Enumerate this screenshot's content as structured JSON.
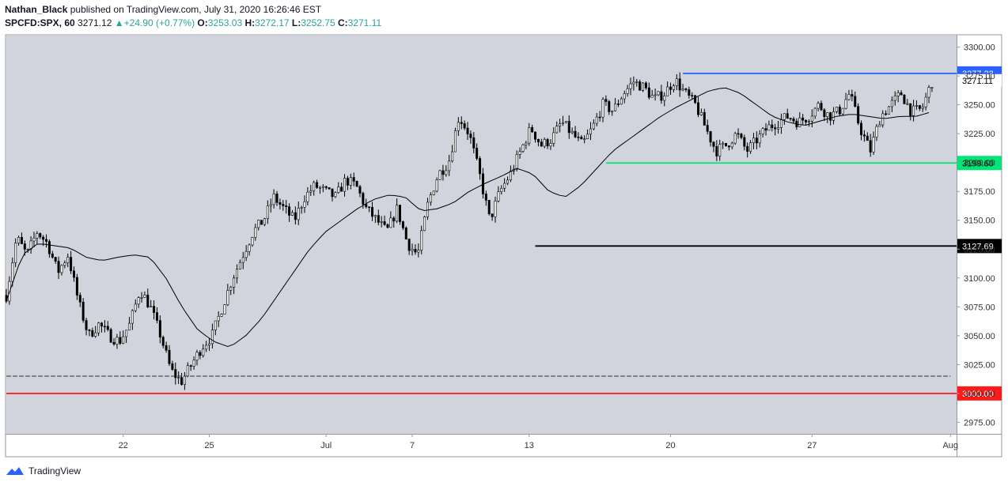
{
  "header": {
    "author": "Nathan_Black",
    "published": "published on TradingView.com, July 31, 2020 16:26:46 EST",
    "symbol": "SPCFD:SPX, 60",
    "last": "3271.12",
    "change": "+24.90 (+0.77%)",
    "o_label": "O:",
    "o_value": "3253.03",
    "h_label": "H:",
    "h_value": "3272.17",
    "l_label": "L:",
    "l_value": "3252.75",
    "c_label": "C:",
    "c_value": "3271.11"
  },
  "footer": {
    "brand": "TradingView",
    "logo_icon": "tradingview-cloud-icon"
  },
  "colors": {
    "up": "#26a69a",
    "bg": "#d1d4dc",
    "blue": "#2962ff",
    "green": "#00e676",
    "red": "#ff1a1a",
    "black": "#000000"
  },
  "chart_data": {
    "type": "candlestick",
    "y_axis": {
      "min": 2965,
      "max": 3310,
      "ticks": [
        2975,
        3000,
        3025,
        3050,
        3075,
        3100,
        3125,
        3150,
        3175,
        3200,
        3225,
        3250,
        3275,
        3300
      ],
      "tick_labels": [
        "2975.00",
        "3000.00",
        "3025.00",
        "3050.00",
        "3075.00",
        "3100.00",
        "3125.00",
        "3150.00",
        "3175.00",
        "3200.00",
        "3225.00",
        "3250.00",
        "3275.00",
        "3300.00"
      ]
    },
    "x_axis": {
      "range": [
        0,
        309
      ],
      "ticks": [
        {
          "label": "22",
          "bar": 38
        },
        {
          "label": "25",
          "bar": 66
        },
        {
          "label": "Jul",
          "bar": 104
        },
        {
          "label": "7",
          "bar": 132
        },
        {
          "label": "13",
          "bar": 170
        },
        {
          "label": "20",
          "bar": 216
        },
        {
          "label": "27",
          "bar": 262
        },
        {
          "label": "Aug",
          "bar": 307
        }
      ]
    },
    "price_series": [
      3085,
      3135,
      3120,
      3140,
      3130,
      3105,
      3120,
      3080,
      3050,
      3060,
      3050,
      3045,
      3060,
      3090,
      3075,
      3050,
      3020,
      3010,
      3025,
      3040,
      3050,
      3075,
      3100,
      3120,
      3140,
      3150,
      3170,
      3160,
      3150,
      3170,
      3180,
      3175,
      3170,
      3185,
      3180,
      3160,
      3150,
      3140,
      3160,
      3130,
      3120,
      3165,
      3190,
      3200,
      3240,
      3225,
      3190,
      3150,
      3175,
      3190,
      3210,
      3230,
      3215,
      3220,
      3235,
      3225,
      3215,
      3230,
      3250,
      3245,
      3260,
      3270,
      3265,
      3255,
      3260,
      3272,
      3260,
      3250,
      3230,
      3210,
      3215,
      3225,
      3210,
      3220,
      3230,
      3235,
      3240,
      3235,
      3240,
      3250,
      3240,
      3245,
      3260,
      3230,
      3210,
      3240,
      3250,
      3260,
      3244,
      3246,
      3270
    ],
    "ma_series": [
      3080,
      3120,
      3130,
      3128,
      3126,
      3118,
      3115,
      3118,
      3120,
      3118,
      3100,
      3075,
      3055,
      3045,
      3040,
      3050,
      3065,
      3085,
      3105,
      3125,
      3140,
      3150,
      3160,
      3168,
      3172,
      3170,
      3158,
      3160,
      3165,
      3175,
      3182,
      3188,
      3195,
      3190,
      3175,
      3170,
      3180,
      3195,
      3210,
      3220,
      3230,
      3240,
      3248,
      3255,
      3262,
      3265,
      3260,
      3250,
      3240,
      3235,
      3232,
      3236,
      3240,
      3242,
      3240,
      3238,
      3240,
      3240,
      3244
    ],
    "levels": [
      {
        "value": 3277.23,
        "label": "3277.23",
        "color": "#2962ff",
        "bar_start": 220
      },
      {
        "value": 3199.6,
        "label": "3199.60",
        "color": "#00e676",
        "bar_start": 195
      },
      {
        "value": 3127.69,
        "label": "3127.69",
        "color": "#000000",
        "bar_start": 172
      },
      {
        "value": 3000.0,
        "label": "3000.00",
        "color": "#ff1a1a",
        "bar_start": 0
      },
      {
        "value": 3015,
        "label": "",
        "color": "#333333",
        "bar_start": 0,
        "bar_end": 307,
        "dashed": true
      }
    ],
    "last_price": {
      "value": 3271.11,
      "label": "3271.11"
    }
  }
}
